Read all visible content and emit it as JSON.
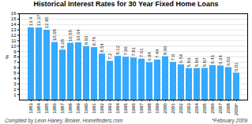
{
  "chart_data": {
    "type": "bar",
    "title": "Historical Interest Rates for 30 Year Fixed Home Loans",
    "subtitle": "Compiled by Leon Haney, Broker, Homefinders.com",
    "footnote": "*February 2009",
    "ylabel": "%",
    "categories": [
      "1983",
      "1984",
      "1985",
      "1986",
      "1987",
      "1988",
      "1989",
      "1990",
      "1991",
      "1992",
      "1993",
      "1994",
      "1995",
      "1996",
      "1997",
      "1998",
      "1999",
      "2000",
      "2001",
      "2002",
      "2003",
      "2004",
      "2005",
      "2006",
      "2007",
      "2008",
      "2009*"
    ],
    "values": [
      13.4,
      13.37,
      12.96,
      10.68,
      9.28,
      10.55,
      10.64,
      9.93,
      9.74,
      8.54,
      7.2,
      8.12,
      7.96,
      7.81,
      7.61,
      6.94,
      7.44,
      8.06,
      7.0,
      6.54,
      5.83,
      5.84,
      5.87,
      6.41,
      6.34,
      6.03,
      5.01
    ],
    "value_labels": [
      "13.4",
      "13.37",
      "12.96",
      "10.68",
      "9.28",
      "10.55",
      "10.64",
      "9.93",
      "9.74",
      "8.54",
      "7.2",
      "8.12",
      "7.96",
      "7.81",
      "7.61",
      "6.94",
      "7.44",
      "8.06",
      "7.0",
      "6.54",
      "5.83",
      "5.84",
      "5.87",
      "6.41",
      "6.34",
      "6.03",
      "5.01"
    ],
    "color": "#33aaff",
    "ylim": [
      0,
      16
    ],
    "yticks": [
      1,
      2,
      3,
      4,
      5,
      6,
      7,
      8,
      9,
      10,
      11,
      12,
      13,
      14,
      15,
      16
    ],
    "grid": true,
    "data_labels": true
  }
}
